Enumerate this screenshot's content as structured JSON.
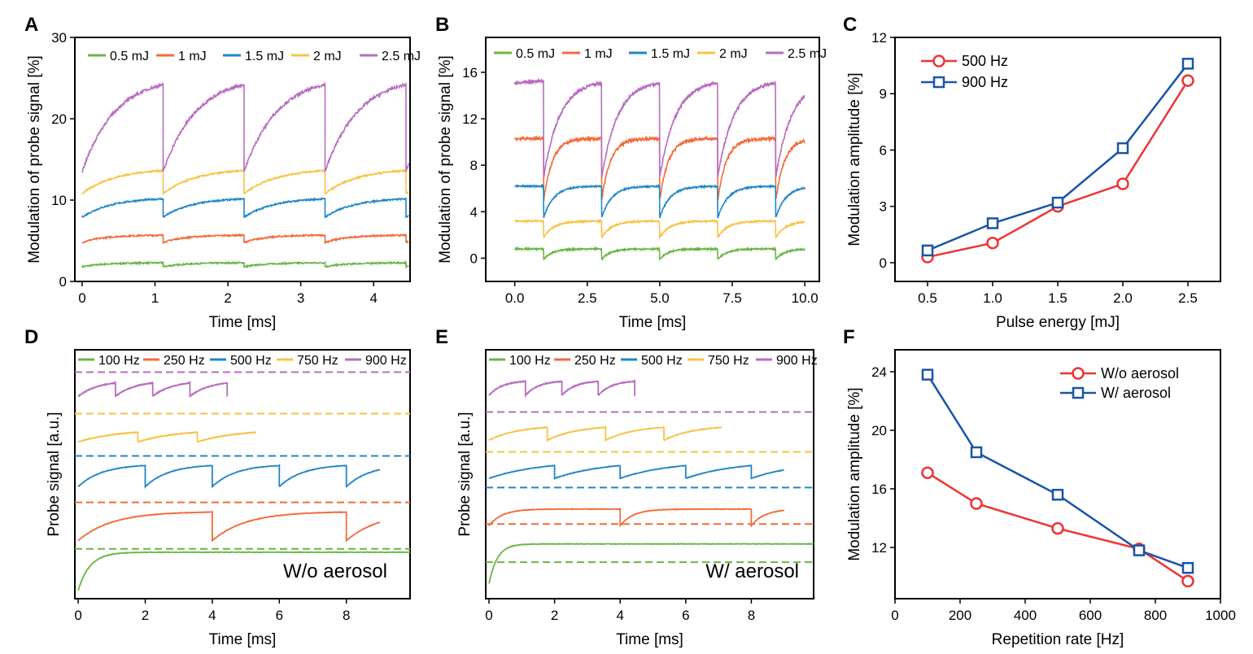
{
  "colors": {
    "green": "#6AB544",
    "orange": "#F26B3A",
    "blue": "#1F86C8",
    "yellow": "#F9C245",
    "purple": "#B76DBF",
    "red": "#EE3333",
    "navy": "#1A55A6"
  },
  "chart_data": [
    {
      "panel": "A",
      "type": "line",
      "xlabel": "Time [ms]",
      "ylabel": "Modulation of probe signal [%]",
      "xlim": [
        -0.1,
        4.5
      ],
      "ylim": [
        0,
        30
      ],
      "xticks": [
        "0",
        "1",
        "2",
        "3",
        "4"
      ],
      "yticks": [
        "0",
        "10",
        "20",
        "30"
      ],
      "period_ms": 1.111,
      "series": [
        {
          "name": "0.5 mJ",
          "color": "green",
          "low": 1.8,
          "high": 2.3,
          "tau": 0.3
        },
        {
          "name": "1 mJ",
          "color": "orange",
          "low": 4.8,
          "high": 5.7,
          "tau": 0.3
        },
        {
          "name": "1.5 mJ",
          "color": "blue",
          "low": 7.9,
          "high": 10.3,
          "tau": 0.4
        },
        {
          "name": "2 mJ",
          "color": "yellow",
          "low": 10.8,
          "high": 13.9,
          "tau": 0.45
        },
        {
          "name": "2.5 mJ",
          "color": "purple",
          "low": 13.5,
          "high": 25.2,
          "tau": 0.45
        }
      ]
    },
    {
      "panel": "B",
      "type": "line",
      "xlabel": "Time [ms]",
      "ylabel": "Modulation of probe signal [%]",
      "xlim": [
        -1,
        10.5
      ],
      "ylim": [
        -2,
        19
      ],
      "xticks": [
        "0.0",
        "2.5",
        "5.0",
        "7.5",
        "10.0"
      ],
      "yticks": [
        "0",
        "4",
        "8",
        "12",
        "16"
      ],
      "period_ms": 2,
      "series": [
        {
          "name": "0.5 mJ",
          "color": "green",
          "low": -0.1,
          "high": 0.8,
          "tau": 0.3
        },
        {
          "name": "1 mJ",
          "color": "orange",
          "low": 5.0,
          "high": 10.3,
          "tau": 0.3
        },
        {
          "name": "1.5 mJ",
          "color": "blue",
          "low": 3.5,
          "high": 6.2,
          "tau": 0.35
        },
        {
          "name": "2 mJ",
          "color": "yellow",
          "low": 1.8,
          "high": 3.2,
          "tau": 0.35
        },
        {
          "name": "2.5 mJ",
          "color": "purple",
          "low": 7.0,
          "high": 15.3,
          "tau": 0.55
        }
      ]
    },
    {
      "panel": "C",
      "type": "line",
      "xlabel": "Pulse energy [mJ]",
      "ylabel": "Modulation amplitude [%]",
      "xlim": [
        0.25,
        2.75
      ],
      "ylim": [
        -1,
        12
      ],
      "xticks": [
        "0.5",
        "1.0",
        "1.5",
        "2.0",
        "2.5"
      ],
      "yticks": [
        "0",
        "3",
        "6",
        "9",
        "12"
      ],
      "x": [
        0.5,
        1.0,
        1.5,
        2.0,
        2.5
      ],
      "series": [
        {
          "name": "500 Hz",
          "color": "red",
          "marker": "circle",
          "values": [
            0.3,
            1.05,
            3.0,
            4.2,
            9.7
          ]
        },
        {
          "name": "900 Hz",
          "color": "navy",
          "marker": "square",
          "values": [
            0.65,
            2.1,
            3.2,
            6.1,
            10.6
          ]
        }
      ]
    },
    {
      "panel": "D",
      "type": "line",
      "xlabel": "Time [ms]",
      "ylabel": "Probe signal [a.u.]",
      "xlim": [
        -0.1,
        9.9
      ],
      "ylim": [
        0,
        30
      ],
      "xticks": [
        "0",
        "2",
        "4",
        "6",
        "8"
      ],
      "annotation": "W/o aerosol",
      "series": [
        {
          "name": "100 Hz",
          "color": "green",
          "period_ms": 10,
          "end_ms": 9.9,
          "low": 1.0,
          "high": 5.6,
          "tau": 0.35,
          "dashed": 6.0
        },
        {
          "name": "250 Hz",
          "color": "orange",
          "period_ms": 4,
          "end_ms": 9.0,
          "low": 7.0,
          "high": 10.5,
          "tau": 1.0,
          "dashed": 11.6
        },
        {
          "name": "500 Hz",
          "color": "blue",
          "period_ms": 2,
          "end_ms": 9.0,
          "low": 13.5,
          "high": 16.2,
          "tau": 0.7,
          "dashed": 17.2
        },
        {
          "name": "750 Hz",
          "color": "yellow",
          "period_ms": 1.778,
          "end_ms": 5.3,
          "low": 18.9,
          "high": 20.4,
          "tau": 1.2,
          "dashed": 22.3
        },
        {
          "name": "900 Hz",
          "color": "purple",
          "period_ms": 1.111,
          "end_ms": 4.45,
          "low": 24.4,
          "high": 26.3,
          "tau": 0.6,
          "dashed": 27.3
        }
      ]
    },
    {
      "panel": "E",
      "type": "line",
      "xlabel": "Time [ms]",
      "ylabel": "Probe signal [a.u.]",
      "xlim": [
        -0.1,
        9.9
      ],
      "ylim": [
        0,
        30
      ],
      "xticks": [
        "0",
        "2",
        "4",
        "6",
        "8"
      ],
      "annotation": "W/ aerosol",
      "series": [
        {
          "name": "100 Hz",
          "color": "green",
          "period_ms": 10,
          "end_ms": 9.9,
          "low": 1.8,
          "high": 6.6,
          "tau": 0.25,
          "dashed": 4.4
        },
        {
          "name": "250 Hz",
          "color": "orange",
          "period_ms": 4,
          "end_ms": 9.0,
          "low": 8.8,
          "high": 10.8,
          "tau": 0.4,
          "dashed": 9.0
        },
        {
          "name": "500 Hz",
          "color": "blue",
          "period_ms": 2,
          "end_ms": 9.0,
          "low": 14.5,
          "high": 16.6,
          "tau": 1.5,
          "dashed": 13.4
        },
        {
          "name": "750 Hz",
          "color": "yellow",
          "period_ms": 1.778,
          "end_ms": 7.1,
          "low": 19.1,
          "high": 20.9,
          "tau": 0.9,
          "dashed": 17.7
        },
        {
          "name": "900 Hz",
          "color": "purple",
          "period_ms": 1.111,
          "end_ms": 4.45,
          "low": 24.5,
          "high": 26.3,
          "tau": 0.4,
          "dashed": 22.5
        }
      ]
    },
    {
      "panel": "F",
      "type": "line",
      "xlabel": "Repetition rate [Hz]",
      "ylabel": "Modulation amplitude [%]",
      "xlim": [
        0,
        1000
      ],
      "ylim": [
        8.5,
        25.5
      ],
      "xticks": [
        "0",
        "200",
        "400",
        "600",
        "800",
        "1000"
      ],
      "yticks": [
        "12",
        "16",
        "20",
        "24"
      ],
      "x": [
        100,
        250,
        500,
        750,
        900
      ],
      "series": [
        {
          "name": "W/o aerosol",
          "color": "red",
          "marker": "circle",
          "values": [
            17.1,
            15.0,
            13.3,
            11.9,
            9.7
          ]
        },
        {
          "name": "W/ aerosol",
          "color": "navy",
          "marker": "square",
          "values": [
            23.8,
            18.5,
            15.6,
            11.8,
            10.6
          ]
        }
      ]
    }
  ]
}
